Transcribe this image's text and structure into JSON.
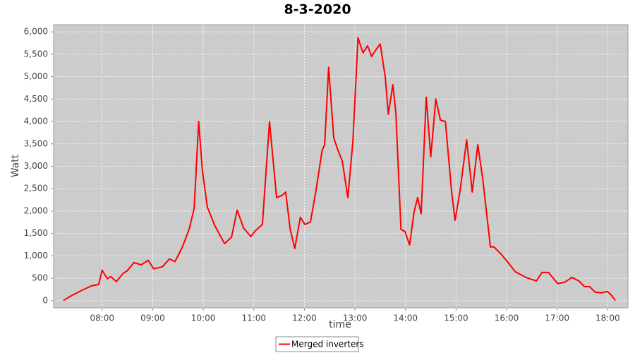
{
  "chart_data": {
    "type": "line",
    "title": "8-3-2020",
    "x_label": "time",
    "y_label": "Watt",
    "x": [
      7.23,
      7.37,
      7.58,
      7.79,
      7.93,
      8.0,
      8.1,
      8.17,
      8.28,
      8.42,
      8.49,
      8.63,
      8.77,
      8.91,
      9.02,
      9.19,
      9.33,
      9.44,
      9.58,
      9.72,
      9.82,
      9.91,
      9.98,
      10.08,
      10.23,
      10.42,
      10.56,
      10.67,
      10.8,
      10.94,
      11.03,
      11.17,
      11.31,
      11.45,
      11.56,
      11.63,
      11.72,
      11.81,
      11.92,
      12.01,
      12.12,
      12.23,
      12.35,
      12.4,
      12.48,
      12.58,
      12.65,
      12.75,
      12.86,
      12.96,
      13.06,
      13.16,
      13.25,
      13.33,
      13.42,
      13.5,
      13.6,
      13.66,
      13.75,
      13.81,
      13.91,
      13.99,
      14.08,
      14.17,
      14.24,
      14.31,
      14.41,
      14.5,
      14.6,
      14.69,
      14.79,
      14.91,
      14.98,
      15.08,
      15.21,
      15.32,
      15.43,
      15.53,
      15.68,
      15.75,
      15.89,
      16.03,
      16.17,
      16.38,
      16.59,
      16.7,
      16.83,
      17.01,
      17.15,
      17.29,
      17.43,
      17.54,
      17.64,
      17.75,
      17.88,
      17.99,
      18.07,
      18.15
    ],
    "series": [
      {
        "name": "Merged inverters",
        "color": "#ff0000",
        "values": [
          0,
          95,
          220,
          330,
          360,
          680,
          490,
          535,
          425,
          615,
          660,
          850,
          800,
          900,
          710,
          755,
          930,
          870,
          1180,
          1590,
          2060,
          4000,
          2930,
          2090,
          1670,
          1275,
          1420,
          2020,
          1620,
          1430,
          1560,
          1700,
          4000,
          2300,
          2350,
          2425,
          1590,
          1165,
          1860,
          1700,
          1760,
          2460,
          3350,
          3480,
          5210,
          3640,
          3400,
          3120,
          2300,
          3560,
          5870,
          5530,
          5690,
          5450,
          5610,
          5730,
          4980,
          4160,
          4820,
          4190,
          1590,
          1545,
          1245,
          1980,
          2300,
          1940,
          4540,
          3210,
          4500,
          4030,
          4000,
          2460,
          1795,
          2460,
          3590,
          2425,
          3480,
          2690,
          1200,
          1200,
          1040,
          850,
          645,
          520,
          440,
          630,
          630,
          380,
          410,
          520,
          440,
          315,
          315,
          190,
          175,
          205,
          125,
          0
        ]
      }
    ],
    "xlim": [
      7.04,
      18.4
    ],
    "xticks": [
      {
        "value": 8,
        "label": "08:00"
      },
      {
        "value": 9,
        "label": "09:00"
      },
      {
        "value": 10,
        "label": "10:00"
      },
      {
        "value": 11,
        "label": "11:00"
      },
      {
        "value": 12,
        "label": "12:00"
      },
      {
        "value": 13,
        "label": "13:00"
      },
      {
        "value": 14,
        "label": "14:00"
      },
      {
        "value": 15,
        "label": "15:00"
      },
      {
        "value": 16,
        "label": "16:00"
      },
      {
        "value": 17,
        "label": "17:00"
      },
      {
        "value": 18,
        "label": "18:00"
      }
    ],
    "ylim": [
      -160,
      6160
    ],
    "yticks": [
      0,
      500,
      {
        "value": 1000,
        "label": "1,000"
      },
      {
        "value": 1500,
        "label": "1,500"
      },
      {
        "value": 2000,
        "label": "2,000"
      },
      {
        "value": 2500,
        "label": "2,500"
      },
      {
        "value": 3000,
        "label": "3,000"
      },
      {
        "value": 3500,
        "label": "3,500"
      },
      {
        "value": 4000,
        "label": "4,000"
      },
      {
        "value": 4500,
        "label": "4,500"
      },
      {
        "value": 5000,
        "label": "5,000"
      },
      {
        "value": 5500,
        "label": "5,500"
      },
      {
        "value": 6000,
        "label": "6,000"
      }
    ],
    "grid": true,
    "legend": "bottom"
  }
}
